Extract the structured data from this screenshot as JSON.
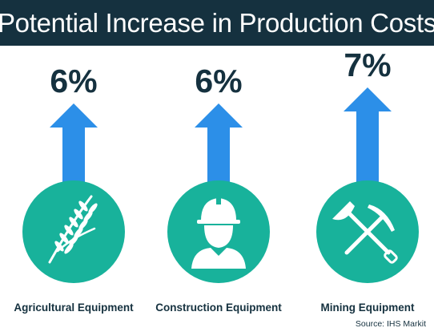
{
  "title": "Potential Increase in Production Costs",
  "source": "Source: IHS Markit",
  "colors": {
    "title_bg": "#15313f",
    "text": "#15313f",
    "arrow": "#2c8fe8",
    "circle": "#18b29b",
    "icon": "#ffffff"
  },
  "chart_data": {
    "type": "bar",
    "categories": [
      "Agricultural Equipment",
      "Construction Equipment",
      "Mining Equipment"
    ],
    "values": [
      6,
      6,
      7
    ],
    "value_labels": [
      "6%",
      "6%",
      "7%"
    ],
    "icons": [
      "wheat-icon",
      "worker-hardhat-icon",
      "shovel-pickaxe-icon"
    ],
    "title": "Potential Increase in Production Costs",
    "xlabel": "",
    "ylabel": "",
    "grid": false
  }
}
